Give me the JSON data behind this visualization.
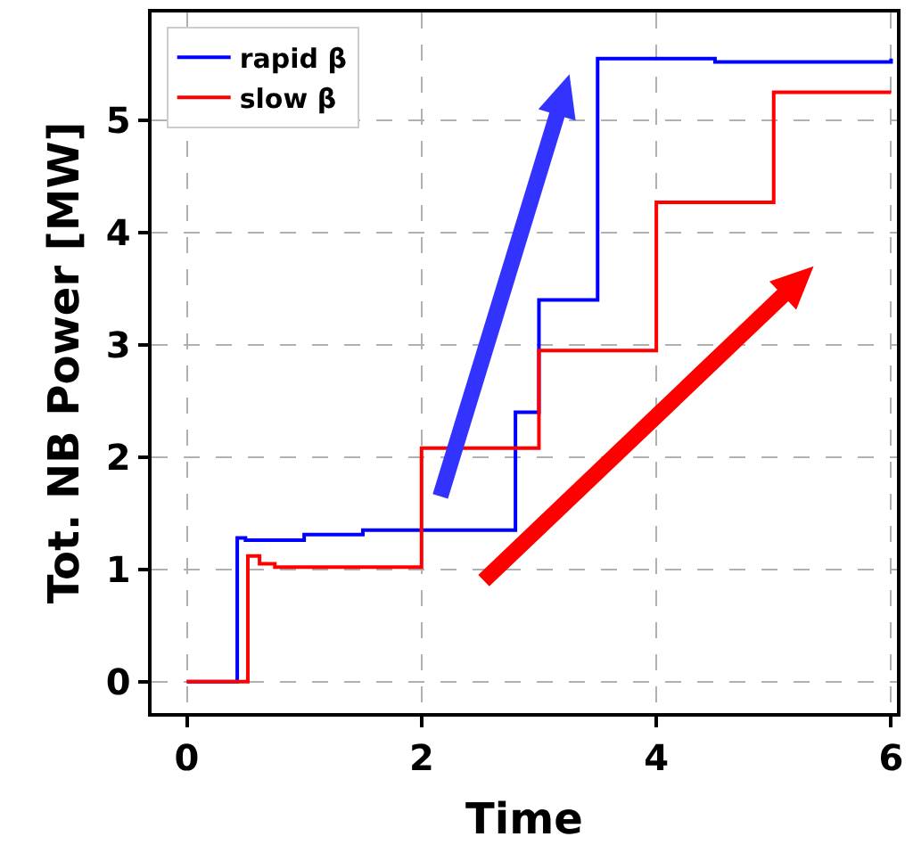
{
  "chart_data": {
    "type": "step",
    "xlabel": "Time",
    "ylabel": "Tot. NB Power [MW]",
    "xlim": [
      -0.3,
      6.05
    ],
    "ylim": [
      -0.28,
      5.96
    ],
    "xticks": [
      0,
      2,
      4,
      6
    ],
    "yticks": [
      0,
      1,
      2,
      3,
      4,
      5
    ],
    "grid": true,
    "legend": "top left",
    "series": [
      {
        "name": "rapid β",
        "color": "#0000ff",
        "x": [
          0,
          0.43,
          0.5,
          1.0,
          1.5,
          2.8,
          3.0,
          3.5,
          4.5,
          6
        ],
        "values": [
          0,
          1.28,
          1.26,
          1.31,
          1.35,
          2.4,
          3.4,
          5.55,
          5.52,
          5.55
        ]
      },
      {
        "name": "slow β",
        "color": "#ff0000",
        "x": [
          0,
          0.52,
          0.62,
          0.75,
          2.0,
          3.0,
          4.0,
          5.0,
          6
        ],
        "values": [
          0,
          1.12,
          1.05,
          1.02,
          2.08,
          2.95,
          4.27,
          5.25,
          5.25
        ]
      }
    ]
  }
}
